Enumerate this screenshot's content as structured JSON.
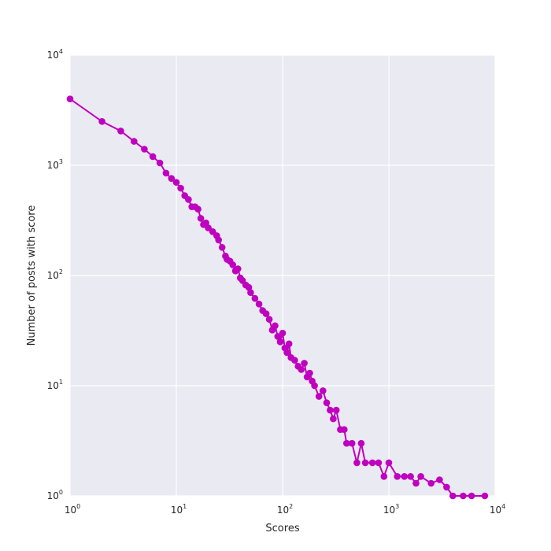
{
  "chart_data": {
    "type": "line",
    "title": "",
    "xlabel": "Scores",
    "ylabel": "Number of posts with score",
    "xscale": "log",
    "yscale": "log",
    "xlim": [
      1,
      10000
    ],
    "ylim": [
      1,
      10000
    ],
    "grid": true,
    "background": "#eaeaf2",
    "grid_color": "#ffffff",
    "series_color": "#bf00bf",
    "marker": "circle",
    "x_ticks": [
      {
        "base": "10",
        "exp": "0"
      },
      {
        "base": "10",
        "exp": "1"
      },
      {
        "base": "10",
        "exp": "2"
      },
      {
        "base": "10",
        "exp": "3"
      },
      {
        "base": "10",
        "exp": "4"
      }
    ],
    "y_ticks": [
      {
        "base": "10",
        "exp": "0"
      },
      {
        "base": "10",
        "exp": "1"
      },
      {
        "base": "10",
        "exp": "2"
      },
      {
        "base": "10",
        "exp": "3"
      },
      {
        "base": "10",
        "exp": "4"
      }
    ],
    "series": [
      {
        "points": [
          [
            1,
            4000
          ],
          [
            2,
            2500
          ],
          [
            3,
            2050
          ],
          [
            4,
            1650
          ],
          [
            5,
            1400
          ],
          [
            6,
            1200
          ],
          [
            7,
            1050
          ],
          [
            8,
            850
          ],
          [
            9,
            760
          ],
          [
            10,
            700
          ],
          [
            11,
            620
          ],
          [
            12,
            530
          ],
          [
            13,
            490
          ],
          [
            14,
            420
          ],
          [
            15,
            420
          ],
          [
            16,
            400
          ],
          [
            17,
            330
          ],
          [
            18,
            290
          ],
          [
            19,
            300
          ],
          [
            20,
            270
          ],
          [
            22,
            250
          ],
          [
            24,
            230
          ],
          [
            25,
            210
          ],
          [
            27,
            180
          ],
          [
            29,
            150
          ],
          [
            30,
            140
          ],
          [
            32,
            135
          ],
          [
            34,
            125
          ],
          [
            36,
            110
          ],
          [
            38,
            115
          ],
          [
            40,
            95
          ],
          [
            42,
            90
          ],
          [
            45,
            82
          ],
          [
            48,
            78
          ],
          [
            50,
            70
          ],
          [
            55,
            62
          ],
          [
            60,
            55
          ],
          [
            65,
            48
          ],
          [
            70,
            45
          ],
          [
            75,
            40
          ],
          [
            80,
            32
          ],
          [
            85,
            35
          ],
          [
            90,
            28
          ],
          [
            95,
            25
          ],
          [
            100,
            30
          ],
          [
            105,
            22
          ],
          [
            110,
            20
          ],
          [
            115,
            24
          ],
          [
            120,
            18
          ],
          [
            130,
            17
          ],
          [
            140,
            15
          ],
          [
            150,
            14
          ],
          [
            160,
            16
          ],
          [
            170,
            12
          ],
          [
            180,
            13
          ],
          [
            190,
            11
          ],
          [
            200,
            10
          ],
          [
            220,
            8
          ],
          [
            240,
            9
          ],
          [
            260,
            7
          ],
          [
            280,
            6
          ],
          [
            300,
            5
          ],
          [
            320,
            6
          ],
          [
            350,
            4
          ],
          [
            380,
            4
          ],
          [
            400,
            3
          ],
          [
            450,
            3
          ],
          [
            500,
            2
          ],
          [
            550,
            3
          ],
          [
            600,
            2
          ],
          [
            700,
            2
          ],
          [
            800,
            2
          ],
          [
            900,
            1.5
          ],
          [
            1000,
            2
          ],
          [
            1200,
            1.5
          ],
          [
            1400,
            1.5
          ],
          [
            1600,
            1.5
          ],
          [
            1800,
            1.3
          ],
          [
            2000,
            1.5
          ],
          [
            2500,
            1.3
          ],
          [
            3000,
            1.4
          ],
          [
            3500,
            1.2
          ],
          [
            4000,
            1
          ],
          [
            5000,
            1
          ],
          [
            6000,
            1
          ],
          [
            8000,
            1
          ]
        ]
      }
    ]
  }
}
